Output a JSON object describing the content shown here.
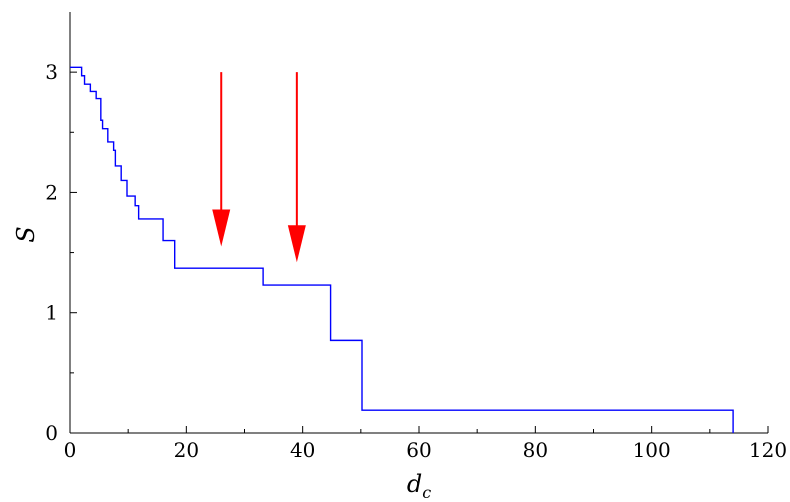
{
  "chart_data": {
    "type": "line",
    "step": true,
    "title": "",
    "xlabel": {
      "base": "d",
      "sub": "c"
    },
    "ylabel": "S",
    "xlim": [
      0,
      120
    ],
    "ylim": [
      0,
      3.5
    ],
    "xticks": [
      0,
      20,
      40,
      60,
      80,
      100,
      120
    ],
    "yticks": [
      0,
      1,
      2,
      3
    ],
    "xtick_labels": [
      "0",
      "20",
      "40",
      "60",
      "80",
      "100",
      "120"
    ],
    "ytick_labels": [
      "0",
      "1",
      "2",
      "3"
    ],
    "grid": false,
    "series": [
      {
        "color": "#0000ff",
        "points": [
          [
            0,
            3.04
          ],
          [
            2,
            3.04
          ],
          [
            2,
            2.97
          ],
          [
            2.5,
            2.97
          ],
          [
            2.5,
            2.9
          ],
          [
            3.5,
            2.9
          ],
          [
            3.5,
            2.84
          ],
          [
            4.5,
            2.84
          ],
          [
            4.5,
            2.78
          ],
          [
            5.3,
            2.78
          ],
          [
            5.3,
            2.6
          ],
          [
            5.6,
            2.6
          ],
          [
            5.6,
            2.53
          ],
          [
            6.5,
            2.53
          ],
          [
            6.5,
            2.42
          ],
          [
            7.5,
            2.42
          ],
          [
            7.5,
            2.35
          ],
          [
            7.8,
            2.35
          ],
          [
            7.8,
            2.22
          ],
          [
            8.8,
            2.22
          ],
          [
            8.8,
            2.1
          ],
          [
            9.8,
            2.1
          ],
          [
            9.8,
            1.97
          ],
          [
            11.2,
            1.97
          ],
          [
            11.2,
            1.89
          ],
          [
            11.8,
            1.89
          ],
          [
            11.8,
            1.78
          ],
          [
            16,
            1.78
          ],
          [
            16,
            1.6
          ],
          [
            18,
            1.6
          ],
          [
            18,
            1.37
          ],
          [
            33.2,
            1.37
          ],
          [
            33.2,
            1.23
          ],
          [
            44.8,
            1.23
          ],
          [
            44.8,
            0.77
          ],
          [
            50.2,
            0.77
          ],
          [
            50.2,
            0.19
          ],
          [
            114,
            0.19
          ],
          [
            114,
            0
          ]
        ]
      }
    ],
    "annotations": [
      {
        "type": "arrow",
        "color": "#ff0000",
        "x": 26,
        "y_from": 3.0,
        "y_to": 1.55
      },
      {
        "type": "arrow",
        "color": "#ff0000",
        "x": 39,
        "y_from": 3.0,
        "y_to": 1.42
      }
    ]
  }
}
